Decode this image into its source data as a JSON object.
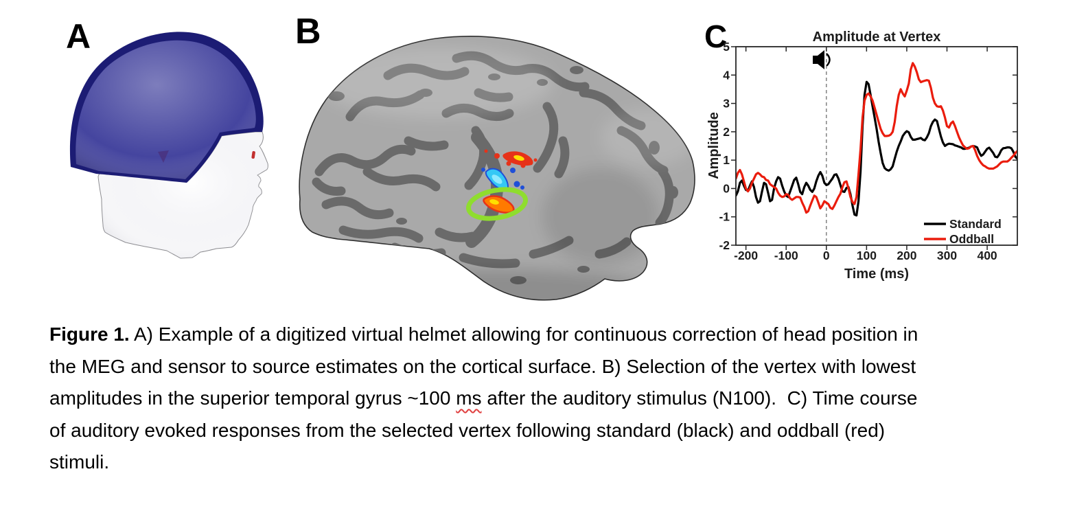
{
  "figure": {
    "background": "#ffffff"
  },
  "panels": {
    "a": {
      "label": "A",
      "content": "digitized virtual helmet over head model",
      "colors": {
        "helmet_outer": "#1c1c74",
        "helmet_inner": "#45459f",
        "head": "#f6f6f8",
        "head_outline": "#8a8a8e",
        "fiducial_red": "#c23030",
        "patch_purple": "#4a2d78"
      }
    },
    "b": {
      "label": "B",
      "content": "inflated cortical surface with activation clusters and selected vertex",
      "colors": {
        "gyri": "#a9a9a9",
        "sulci": "#6a6a6a",
        "outline": "#2f2f2f",
        "activation_hot": "#e63219",
        "activation_hot_mid": "#ff7a00",
        "activation_hot_core": "#ffdf00",
        "activation_cool": "#35c8f5",
        "activation_cool_dark": "#1f4fd8",
        "activation_cool_core": "#8feaff",
        "vertex_circle": "#8fdd2e"
      }
    },
    "c": {
      "label": "C"
    }
  },
  "chart_data": {
    "type": "line",
    "title": "Amplitude at Vertex",
    "xlabel": "Time (ms)",
    "ylabel": "Amplitude",
    "xlim": [
      -225,
      475
    ],
    "ylim": [
      -2,
      5
    ],
    "xticks": [
      -200,
      -100,
      0,
      100,
      200,
      300,
      400
    ],
    "yticks": [
      -2,
      -1,
      0,
      1,
      2,
      3,
      4,
      5
    ],
    "grid": false,
    "legend_position": "bottom-right",
    "axis_color": "#262626",
    "stimulus_marker": {
      "time": 0,
      "line_style": "dashed",
      "line_color": "#8a8a8a",
      "icon": "speaker-icon"
    },
    "x": [
      -225,
      -220,
      -215,
      -210,
      -205,
      -200,
      -195,
      -190,
      -185,
      -180,
      -175,
      -170,
      -165,
      -160,
      -155,
      -150,
      -145,
      -140,
      -135,
      -130,
      -125,
      -120,
      -115,
      -110,
      -105,
      -100,
      -95,
      -90,
      -85,
      -80,
      -75,
      -70,
      -65,
      -60,
      -55,
      -50,
      -45,
      -40,
      -35,
      -30,
      -25,
      -20,
      -15,
      -10,
      -5,
      0,
      5,
      10,
      15,
      20,
      25,
      30,
      35,
      40,
      45,
      50,
      55,
      60,
      65,
      70,
      75,
      80,
      85,
      90,
      95,
      100,
      105,
      110,
      115,
      120,
      125,
      130,
      135,
      140,
      145,
      150,
      155,
      160,
      165,
      170,
      175,
      180,
      185,
      190,
      195,
      200,
      205,
      210,
      215,
      220,
      225,
      230,
      235,
      240,
      245,
      250,
      255,
      260,
      265,
      270,
      275,
      280,
      285,
      290,
      295,
      300,
      305,
      310,
      315,
      320,
      325,
      330,
      335,
      340,
      345,
      350,
      355,
      360,
      365,
      370,
      375,
      380,
      385,
      390,
      395,
      400,
      405,
      410,
      415,
      420,
      425,
      430,
      435,
      440,
      445,
      450,
      455,
      460,
      465,
      470,
      475
    ],
    "series": [
      {
        "name": "Standard",
        "color": "#000000",
        "values": [
          -0.25,
          -0.1,
          0.2,
          0.28,
          0.1,
          -0.05,
          -0.08,
          0.1,
          0.25,
          0.05,
          -0.3,
          -0.5,
          -0.45,
          -0.1,
          0.2,
          0.15,
          -0.15,
          -0.45,
          -0.4,
          0,
          0.25,
          0.4,
          0.35,
          0.1,
          -0.1,
          -0.25,
          -0.3,
          -0.1,
          0.1,
          0.3,
          0.38,
          0.15,
          -0.12,
          -0.2,
          0.05,
          0.2,
          0.1,
          -0.05,
          -0.12,
          0,
          0.25,
          0.45,
          0.58,
          0.45,
          0.2,
          0.12,
          0.15,
          0.25,
          0.35,
          0.48,
          0.5,
          0.35,
          0.12,
          -0.1,
          -0.12,
          0.02,
          0.05,
          -0.2,
          -0.6,
          -0.92,
          -0.95,
          -0.45,
          0.6,
          2.2,
          3.3,
          3.76,
          3.68,
          3.3,
          2.9,
          2.5,
          2.1,
          1.65,
          1.25,
          0.9,
          0.72,
          0.66,
          0.63,
          0.68,
          0.78,
          1.05,
          1.3,
          1.5,
          1.66,
          1.85,
          1.95,
          2.02,
          1.98,
          1.82,
          1.72,
          1.72,
          1.74,
          1.76,
          1.78,
          1.72,
          1.7,
          1.8,
          1.95,
          2.2,
          2.35,
          2.43,
          2.38,
          2.1,
          1.83,
          1.62,
          1.5,
          1.55,
          1.58,
          1.57,
          1.56,
          1.52,
          1.5,
          1.47,
          1.45,
          1.4,
          1.4,
          1.42,
          1.44,
          1.48,
          1.5,
          1.48,
          1.45,
          1.28,
          1.15,
          1.2,
          1.3,
          1.4,
          1.44,
          1.35,
          1.25,
          1.12,
          1.1,
          1.2,
          1.35,
          1.42,
          1.43,
          1.45,
          1.45,
          1.42,
          1.3,
          1.12,
          1.05
        ]
      },
      {
        "name": "Oddball",
        "color": "#ea1c0d",
        "values": [
          0.35,
          0.55,
          0.65,
          0.5,
          0.25,
          0,
          -0.1,
          0,
          0.2,
          0.35,
          0.5,
          0.55,
          0.5,
          0.42,
          0.4,
          0.3,
          0.28,
          0.15,
          0.1,
          0.05,
          0,
          -0.15,
          -0.25,
          -0.3,
          -0.28,
          -0.2,
          -0.22,
          -0.35,
          -0.4,
          -0.35,
          -0.3,
          -0.3,
          -0.32,
          -0.5,
          -0.65,
          -0.85,
          -0.8,
          -0.6,
          -0.42,
          -0.25,
          -0.3,
          -0.5,
          -0.7,
          -0.6,
          -0.45,
          -0.5,
          -0.55,
          -0.68,
          -0.72,
          -0.6,
          -0.45,
          -0.3,
          -0.18,
          0.05,
          0.22,
          0.25,
          0,
          -0.3,
          -0.48,
          -0.55,
          -0.3,
          0.5,
          1.4,
          2.5,
          3.1,
          3.3,
          3.35,
          3.25,
          3.1,
          2.85,
          2.6,
          2.35,
          2.1,
          1.95,
          1.85,
          1.85,
          1.86,
          1.9,
          2,
          2.35,
          2.9,
          3.3,
          3.5,
          3.35,
          3.25,
          3.45,
          3.7,
          4.2,
          4.42,
          4.3,
          4.1,
          3.85,
          3.75,
          3.78,
          3.8,
          3.82,
          3.8,
          3.55,
          3.2,
          3,
          2.9,
          2.88,
          2.9,
          2.75,
          2.5,
          2.2,
          2.15,
          2.3,
          2.36,
          2.2,
          2,
          1.8,
          1.65,
          1.52,
          1.45,
          1.4,
          1.42,
          1.48,
          1.5,
          1.35,
          1.15,
          1,
          0.9,
          0.82,
          0.78,
          0.73,
          0.7,
          0.7,
          0.7,
          0.74,
          0.78,
          0.85,
          0.92,
          0.95,
          0.95,
          0.95,
          1,
          1.08,
          1.15,
          1.25,
          1.32
        ]
      }
    ]
  },
  "caption": {
    "lines": [
      {
        "segments": [
          {
            "text": "Figure 1.",
            "bold": true
          },
          {
            "text": " A) Example of a digitized virtual helmet allowing for continuous correction of head position in"
          }
        ]
      },
      {
        "segments": [
          {
            "text": "the MEG and sensor to source estimates on the cortical surface. B) Selection of the vertex with lowest"
          }
        ]
      },
      {
        "segments": [
          {
            "text": "amplitudes in the superior temporal gyrus ~100 "
          },
          {
            "text": "ms",
            "spellcheck": true
          },
          {
            "text": " after the auditory stimulus (N100).  C) Time course"
          }
        ]
      },
      {
        "segments": [
          {
            "text": "of auditory evoked responses from the selected vertex following standard (black) and oddball (red)"
          }
        ]
      },
      {
        "segments": [
          {
            "text": "stimuli."
          }
        ]
      }
    ]
  }
}
